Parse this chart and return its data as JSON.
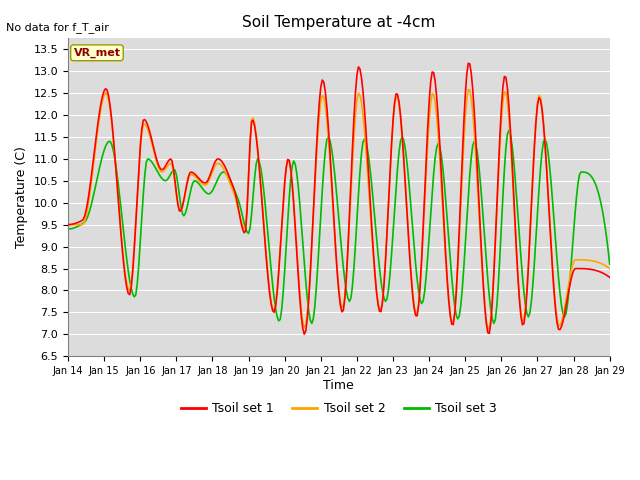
{
  "title": "Soil Temperature at -4cm",
  "no_data_text": "No data for f_T_air",
  "xlabel": "Time",
  "ylabel": "Temperature (C)",
  "ylim": [
    6.5,
    13.75
  ],
  "yticks": [
    6.5,
    7.0,
    7.5,
    8.0,
    8.5,
    9.0,
    9.5,
    10.0,
    10.5,
    11.0,
    11.5,
    12.0,
    12.5,
    13.0,
    13.5
  ],
  "xtick_labels": [
    "Jan 14",
    "Jan 15",
    "Jan 16",
    "Jan 17",
    "Jan 18",
    "Jan 19",
    "Jan 20",
    "Jan 21",
    "Jan 22",
    "Jan 23",
    "Jan 24",
    "Jan 25",
    "Jan 26",
    "Jan 27",
    "Jan 28",
    "Jan 29"
  ],
  "color_set1": "#FF0000",
  "color_set2": "#FFA500",
  "color_set3": "#00BB00",
  "legend_labels": [
    "Tsoil set 1",
    "Tsoil set 2",
    "Tsoil set 3"
  ],
  "vr_met_label": "VR_met",
  "bg_color": "#DCDCDC",
  "linewidth": 1.2
}
